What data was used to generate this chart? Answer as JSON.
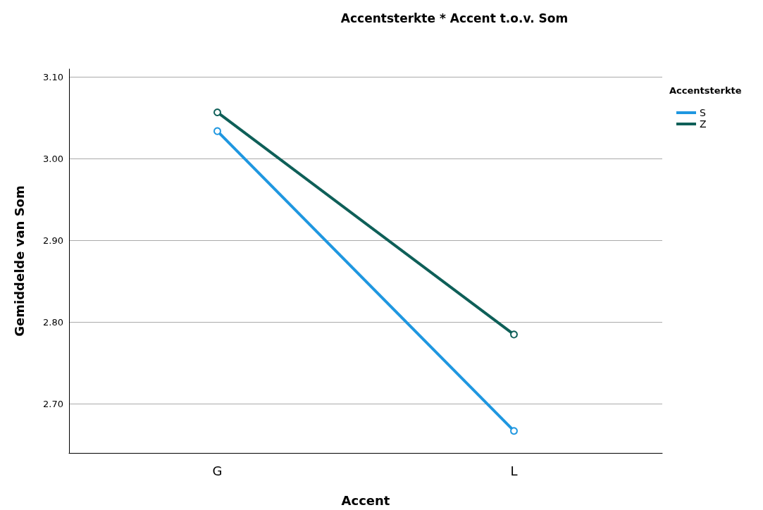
{
  "chart_data": {
    "type": "line",
    "title": "Accentsterkte * Accent t.o.v. Som",
    "xlabel": "Accent",
    "ylabel": "Gemiddelde van Som",
    "legend_title": "Accentsterkte",
    "categories": [
      "G",
      "L"
    ],
    "series": [
      {
        "name": "S",
        "color": "#1f97e0",
        "values": [
          3.034,
          2.667
        ]
      },
      {
        "name": "Z",
        "color": "#0e5f58",
        "values": [
          3.057,
          2.785
        ]
      }
    ],
    "ylim": [
      2.64,
      3.11
    ],
    "yticks": [
      {
        "value": 2.7,
        "label": "2.70"
      },
      {
        "value": 2.8,
        "label": "2.80"
      },
      {
        "value": 2.9,
        "label": "2.90"
      },
      {
        "value": 3.0,
        "label": "3.00"
      },
      {
        "value": 3.1,
        "label": "3.10"
      }
    ],
    "grid": "y",
    "legend": "top right",
    "marker": "circle",
    "line_style": "solid"
  }
}
